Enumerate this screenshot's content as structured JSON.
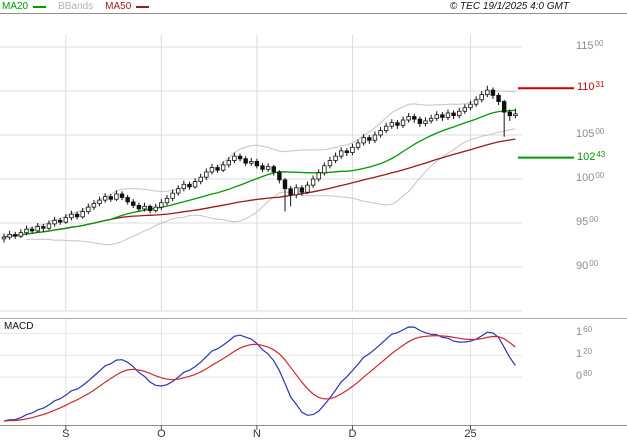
{
  "header": {
    "legend": [
      {
        "label": "MA20",
        "color": "#009a00",
        "swatch": true
      },
      {
        "label": "BBands",
        "color": "#b3b3b3",
        "swatch": false
      },
      {
        "label": "MA50",
        "color": "#9a1a1a",
        "swatch": true
      }
    ],
    "copyright": "© TEC 19/1/2025 4:0 GMT"
  },
  "price_axis": {
    "labels": [
      {
        "main": "115",
        "sup": "00",
        "value": 115
      },
      {
        "main": "110",
        "sup": "00",
        "value": 110
      },
      {
        "main": "105",
        "sup": "00",
        "value": 105
      },
      {
        "main": "100",
        "sup": "00",
        "value": 100
      },
      {
        "main": "95",
        "sup": "00",
        "value": 95
      },
      {
        "main": "90",
        "sup": "00",
        "value": 90
      }
    ]
  },
  "macd_panel": {
    "title": "MACD",
    "labels": [
      {
        "main": "1",
        "sup": "60",
        "value": 1.6
      },
      {
        "main": "1",
        "sup": "20",
        "value": 1.2
      },
      {
        "main": "0",
        "sup": "80",
        "value": 0.8
      }
    ],
    "line_color": "#2a35b8",
    "signal_color": "#cc2a2a"
  },
  "chart_data": {
    "type": "candlestick",
    "title": "",
    "ylim": [
      85,
      116.4
    ],
    "x_ticks": [
      {
        "label": "S",
        "index": 11
      },
      {
        "label": "O",
        "index": 28
      },
      {
        "label": "N",
        "index": 45
      },
      {
        "label": "D",
        "index": 62
      },
      {
        "label": "25",
        "index": 83
      }
    ],
    "levels": [
      {
        "main": "110",
        "sup": "31",
        "value": 110.31,
        "color": "#cc0000"
      },
      {
        "main": "102",
        "sup": "43",
        "value": 102.43,
        "color": "#009a00"
      }
    ],
    "indicators": {
      "ma": [
        20,
        50
      ],
      "bbands": {
        "period": 20,
        "stddev": 2
      },
      "macd": {
        "fast": 12,
        "slow": 26,
        "signal": 9
      }
    },
    "candles": [
      [
        93.2,
        93.8,
        92.8,
        93.4
      ],
      [
        93.4,
        94.1,
        93.1,
        93.7
      ],
      [
        93.7,
        94.0,
        93.2,
        93.5
      ],
      [
        93.5,
        94.3,
        93.3,
        93.9
      ],
      [
        93.9,
        94.7,
        93.6,
        94.3
      ],
      [
        94.3,
        94.6,
        93.8,
        94.1
      ],
      [
        94.1,
        95.0,
        93.9,
        94.6
      ],
      [
        94.6,
        94.9,
        94.0,
        94.4
      ],
      [
        94.4,
        95.3,
        94.2,
        94.9
      ],
      [
        94.9,
        95.7,
        94.6,
        95.3
      ],
      [
        95.3,
        95.6,
        94.8,
        95.1
      ],
      [
        95.1,
        96.0,
        94.9,
        95.6
      ],
      [
        95.6,
        96.4,
        95.3,
        96.0
      ],
      [
        96.0,
        96.3,
        95.4,
        95.7
      ],
      [
        95.7,
        96.7,
        95.5,
        96.3
      ],
      [
        96.3,
        97.2,
        96.0,
        96.8
      ],
      [
        96.8,
        97.6,
        96.5,
        97.2
      ],
      [
        97.2,
        98.0,
        96.9,
        97.6
      ],
      [
        97.6,
        98.4,
        97.3,
        98.0
      ],
      [
        98.0,
        98.3,
        97.4,
        97.7
      ],
      [
        97.7,
        98.7,
        97.5,
        98.3
      ],
      [
        98.3,
        98.6,
        97.6,
        97.9
      ],
      [
        97.9,
        98.2,
        97.1,
        97.4
      ],
      [
        97.4,
        97.7,
        96.7,
        97.0
      ],
      [
        97.0,
        97.3,
        96.3,
        96.6
      ],
      [
        96.6,
        97.3,
        96.3,
        96.9
      ],
      [
        96.9,
        97.1,
        96.1,
        96.4
      ],
      [
        96.4,
        97.2,
        96.2,
        96.8
      ],
      [
        96.8,
        97.7,
        96.5,
        97.3
      ],
      [
        97.3,
        98.2,
        97.0,
        97.8
      ],
      [
        97.8,
        98.8,
        97.5,
        98.4
      ],
      [
        98.4,
        99.3,
        98.1,
        98.9
      ],
      [
        98.9,
        99.8,
        98.6,
        99.4
      ],
      [
        99.4,
        99.7,
        98.8,
        99.1
      ],
      [
        99.1,
        100.1,
        98.9,
        99.7
      ],
      [
        99.7,
        100.6,
        99.4,
        100.2
      ],
      [
        100.2,
        101.2,
        99.9,
        100.8
      ],
      [
        100.8,
        101.7,
        100.5,
        101.3
      ],
      [
        101.3,
        101.6,
        100.7,
        101.0
      ],
      [
        101.0,
        102.0,
        100.8,
        101.6
      ],
      [
        101.6,
        102.5,
        101.3,
        102.1
      ],
      [
        102.1,
        103.0,
        101.8,
        102.6
      ],
      [
        102.6,
        102.9,
        102.0,
        102.3
      ],
      [
        102.3,
        102.6,
        101.5,
        101.8
      ],
      [
        101.8,
        102.4,
        101.5,
        102.0
      ],
      [
        102.0,
        102.3,
        101.2,
        101.5
      ],
      [
        101.5,
        101.8,
        100.8,
        101.1
      ],
      [
        101.1,
        101.8,
        100.8,
        101.4
      ],
      [
        101.4,
        101.6,
        100.4,
        100.8
      ],
      [
        100.8,
        101.0,
        99.5,
        99.9
      ],
      [
        99.9,
        100.1,
        96.3,
        98.9
      ],
      [
        98.9,
        99.2,
        96.9,
        98.2
      ],
      [
        98.2,
        99.4,
        97.8,
        99.0
      ],
      [
        99.0,
        99.3,
        98.1,
        98.5
      ],
      [
        98.5,
        99.7,
        98.3,
        99.3
      ],
      [
        99.3,
        100.4,
        99.0,
        100.0
      ],
      [
        100.0,
        101.1,
        99.7,
        100.7
      ],
      [
        100.7,
        101.9,
        100.4,
        101.5
      ],
      [
        101.5,
        102.5,
        101.2,
        102.1
      ],
      [
        102.1,
        103.0,
        101.8,
        102.6
      ],
      [
        102.6,
        103.6,
        102.3,
        103.2
      ],
      [
        103.2,
        103.5,
        102.6,
        103.0
      ],
      [
        103.0,
        104.0,
        102.7,
        103.6
      ],
      [
        103.6,
        104.5,
        103.3,
        104.1
      ],
      [
        104.1,
        105.1,
        103.8,
        104.7
      ],
      [
        104.7,
        105.0,
        104.0,
        104.4
      ],
      [
        104.4,
        105.4,
        104.1,
        105.0
      ],
      [
        105.0,
        105.9,
        104.7,
        105.5
      ],
      [
        105.5,
        106.4,
        105.2,
        106.0
      ],
      [
        106.0,
        106.8,
        105.7,
        106.4
      ],
      [
        106.4,
        106.7,
        105.7,
        106.1
      ],
      [
        106.1,
        107.1,
        105.8,
        106.7
      ],
      [
        106.7,
        107.5,
        106.4,
        107.1
      ],
      [
        107.1,
        107.4,
        106.4,
        106.8
      ],
      [
        106.8,
        107.1,
        105.9,
        106.3
      ],
      [
        106.3,
        107.0,
        106.0,
        106.6
      ],
      [
        106.6,
        107.3,
        106.3,
        106.9
      ],
      [
        106.9,
        107.7,
        106.6,
        107.3
      ],
      [
        107.3,
        107.6,
        106.6,
        107.0
      ],
      [
        107.0,
        107.9,
        106.7,
        107.5
      ],
      [
        107.5,
        107.8,
        106.8,
        107.2
      ],
      [
        107.2,
        108.1,
        106.9,
        107.7
      ],
      [
        107.7,
        108.5,
        107.4,
        108.1
      ],
      [
        108.1,
        108.9,
        107.8,
        108.5
      ],
      [
        108.5,
        109.4,
        108.2,
        109.0
      ],
      [
        109.0,
        110.0,
        108.7,
        109.6
      ],
      [
        109.6,
        110.6,
        109.3,
        110.1
      ],
      [
        110.1,
        110.4,
        109.1,
        109.5
      ],
      [
        109.5,
        109.8,
        108.4,
        108.8
      ],
      [
        108.8,
        109.0,
        104.8,
        107.6
      ],
      [
        107.6,
        107.9,
        106.6,
        107.2
      ],
      [
        107.2,
        108.0,
        106.9,
        107.4
      ]
    ]
  }
}
